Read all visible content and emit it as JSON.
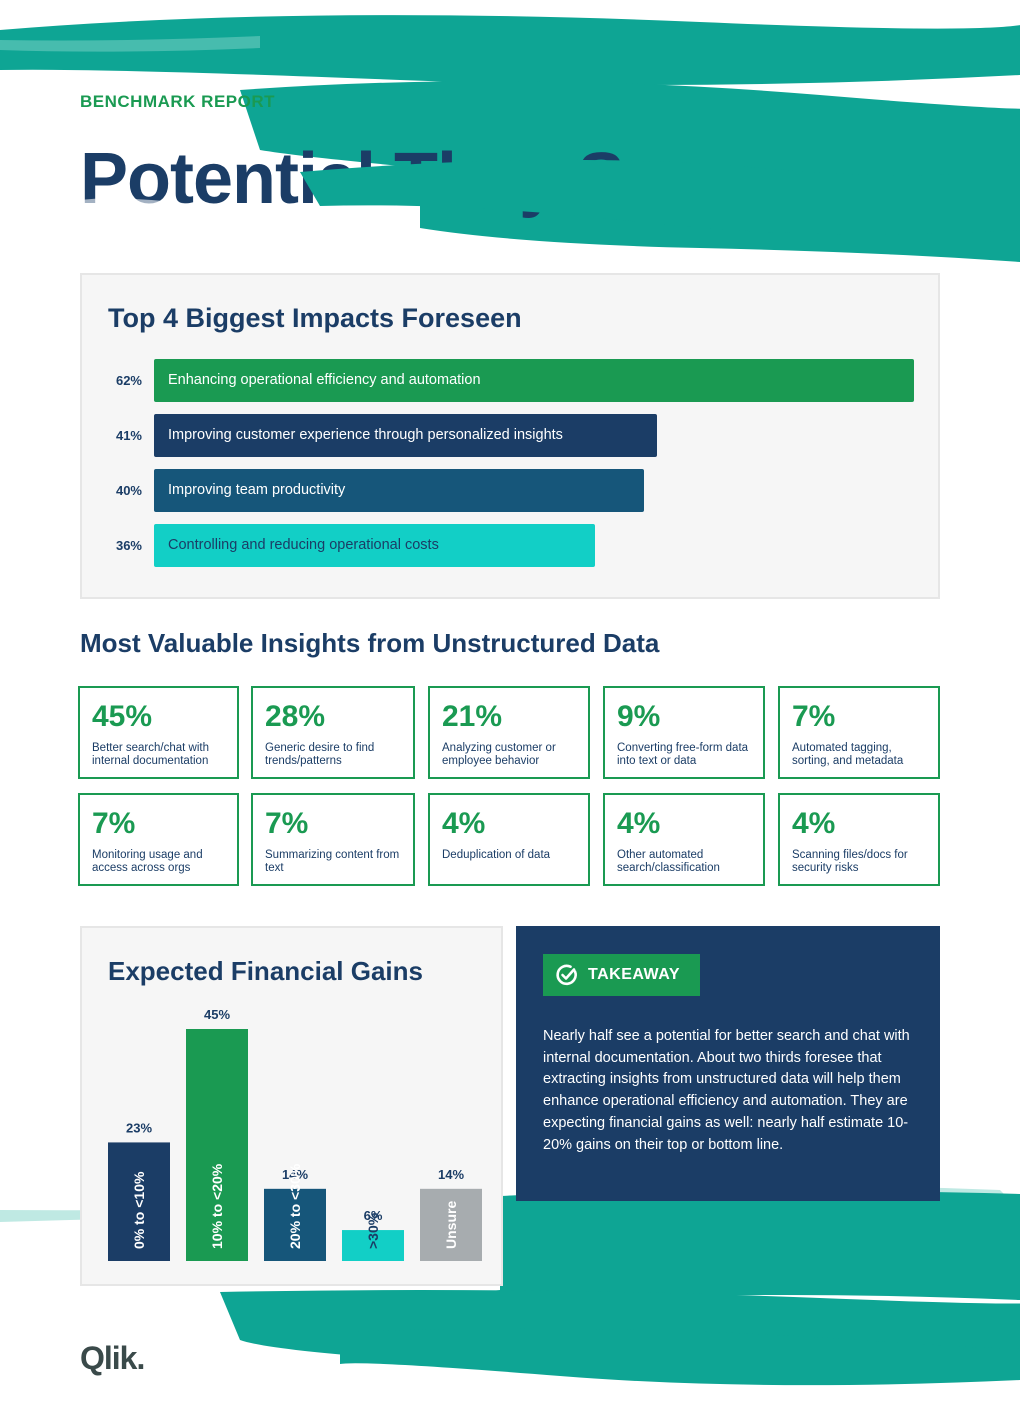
{
  "header": {
    "eyebrow": "BENCHMARK REPORT",
    "title": "Potential They See"
  },
  "impacts": {
    "title": "Top 4 Biggest Impacts Foreseen",
    "items": [
      {
        "pct_label": "62%",
        "value": 62,
        "label": "Enhancing operational efficiency and automation",
        "color": "#1a9a52"
      },
      {
        "pct_label": "41%",
        "value": 41,
        "label": "Improving customer experience through personalized insights",
        "color": "#1b3d66"
      },
      {
        "pct_label": "40%",
        "value": 40,
        "label": "Improving team productivity",
        "color": "#16567a"
      },
      {
        "pct_label": "36%",
        "value": 36,
        "label": "Controlling and reducing operational costs",
        "color": "#12cfc6"
      }
    ]
  },
  "insights": {
    "title": "Most Valuable Insights from Unstructured Data",
    "cards": [
      {
        "pct": "45%",
        "desc": "Better search/chat with internal documentation"
      },
      {
        "pct": "28%",
        "desc": "Generic desire to find trends/patterns"
      },
      {
        "pct": "21%",
        "desc": "Analyzing customer or employee behavior"
      },
      {
        "pct": "9%",
        "desc": "Converting free-form data into text or data"
      },
      {
        "pct": "7%",
        "desc": "Automated tagging, sorting, and metadata"
      },
      {
        "pct": "7%",
        "desc": "Monitoring usage and access across orgs"
      },
      {
        "pct": "7%",
        "desc": "Summarizing content from text"
      },
      {
        "pct": "4%",
        "desc": "Deduplication of data"
      },
      {
        "pct": "4%",
        "desc": "Other automated search/classification"
      },
      {
        "pct": "4%",
        "desc": "Scanning files/docs for security risks"
      }
    ]
  },
  "financial": {
    "title": "Expected Financial Gains",
    "chart_data": {
      "type": "bar",
      "categories": [
        "0% to <10%",
        "10% to <20%",
        "20% to <30%",
        ">30%",
        "Unsure"
      ],
      "values": [
        23,
        45,
        14,
        6,
        14
      ],
      "value_labels": [
        "23%",
        "45%",
        "14%",
        "6%",
        "14%"
      ],
      "colors": [
        "#1b3d66",
        "#1a9a52",
        "#16567a",
        "#12cfc6",
        "#a7acaf"
      ],
      "ylim": [
        0,
        45
      ],
      "grid": false,
      "legend": "none"
    }
  },
  "takeaway": {
    "badge": "TAKEAWAY",
    "text": "Nearly half see a potential for better search and chat with internal documentation. About two thirds foresee that extracting insights from unstructured data will help them enhance operational efficiency and automation. They are expecting financial gains as well: nearly half estimate 10-20% gains on their top or bottom line.",
    "icon": "check-circle-icon"
  },
  "footer": {
    "logo": "Qlik."
  }
}
